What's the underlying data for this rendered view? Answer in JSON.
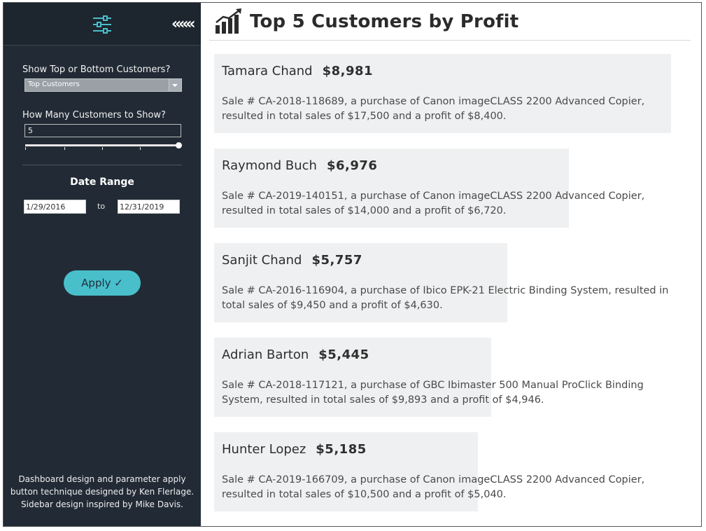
{
  "sidebar": {
    "filter_icon": "sliders-icon",
    "collapse_label": "«««",
    "show_label": "Show Top or Bottom Customers?",
    "show_value": "Top Customers",
    "count_label": "How Many Customers to Show?",
    "count_value": "5",
    "slider_level": 1.0,
    "date_range_title": "Date Range",
    "date_from": "1/29/2016",
    "date_to_label": "to",
    "date_to": "12/31/2019",
    "apply_label": "Apply ✓",
    "accent_color": "#49bfcc",
    "credits": [
      "Dashboard design and parameter apply",
      "button technique designed by Ken Flerlage.",
      "Sidebar design inspired by Mike Davis."
    ]
  },
  "main": {
    "title_icon": "chart-growth-icon",
    "title": "Top 5 Customers by Profit",
    "customers": [
      {
        "name": "Tamara Chand",
        "profit": "$8,981",
        "line1": "Sale # CA-2018-118689, a purchase of Canon imageCLASS 2200 Advanced Copier,",
        "line2": "resulted in total sales of $17,500 and a profit of $8,400.",
        "profit_value": 8981
      },
      {
        "name": "Raymond Buch",
        "profit": "$6,976",
        "line1": "Sale # CA-2019-140151, a purchase of Canon imageCLASS 2200 Advanced Copier,",
        "line2": "resulted in total sales of $14,000 and a profit of $6,720.",
        "profit_value": 6976
      },
      {
        "name": "Sanjit Chand",
        "profit": "$5,757",
        "line1": "Sale # CA-2016-116904, a purchase of Ibico EPK-21 Electric Binding System, resulted in",
        "line2": "total sales of $9,450 and a profit of $4,630.",
        "profit_value": 5757
      },
      {
        "name": "Adrian Barton",
        "profit": "$5,445",
        "line1": "Sale # CA-2018-117121, a purchase of GBC Ibimaster 500 Manual ProClick Binding",
        "line2": "System, resulted in total sales of $9,893 and a profit of $4,946.",
        "profit_value": 5445
      },
      {
        "name": "Hunter Lopez",
        "profit": "$5,185",
        "line1": "Sale # CA-2019-166709, a purchase of Canon imageCLASS 2200 Advanced Copier,",
        "line2": "resulted in total sales of $10,500 and a profit of $5,040.",
        "profit_value": 5185
      }
    ]
  }
}
